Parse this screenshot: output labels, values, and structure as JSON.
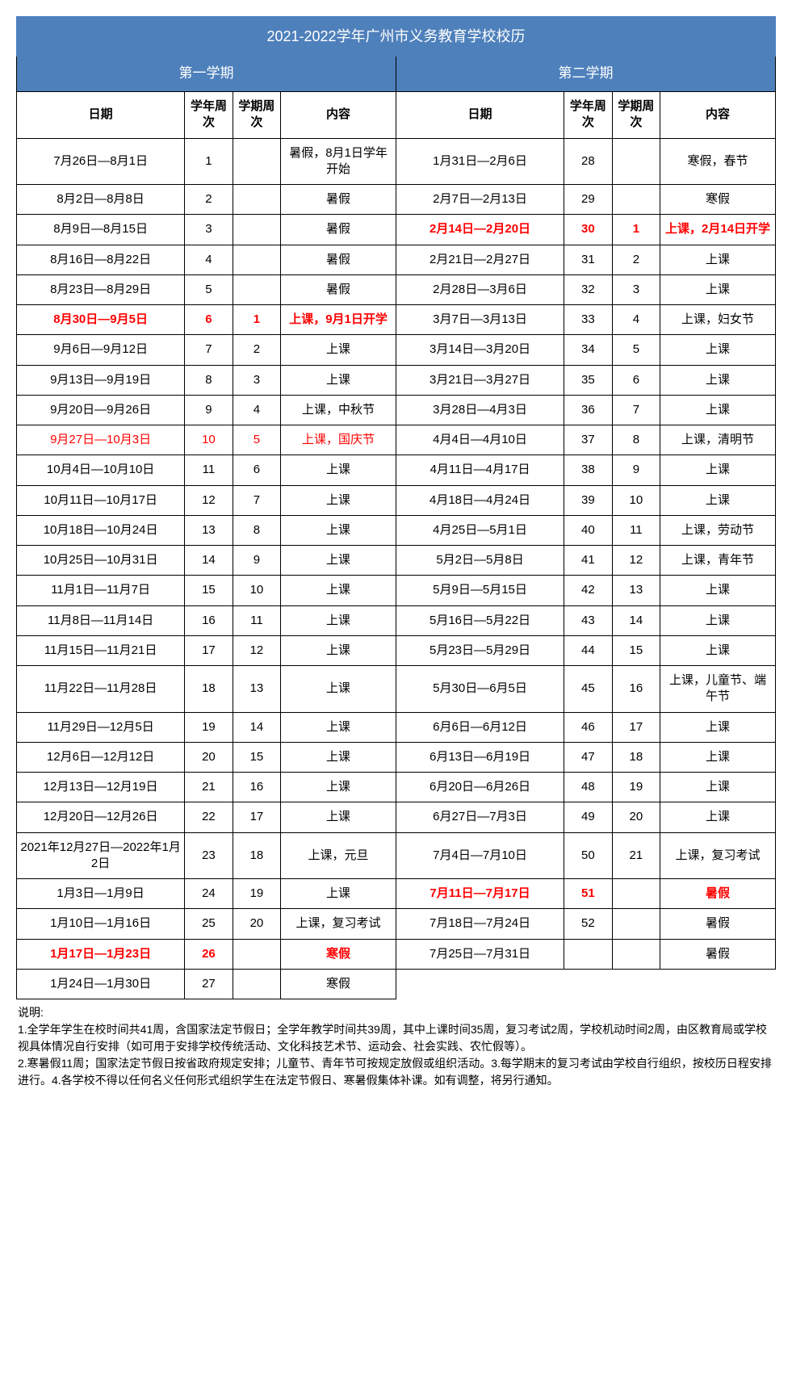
{
  "title": "2021-2022学年广州市义务教育学校校历",
  "semesters": [
    "第一学期",
    "第二学期"
  ],
  "headers": {
    "date": "日期",
    "yearWeek": "学年周次",
    "semWeek": "学期周次",
    "content": "内容"
  },
  "colors": {
    "headerBg": "#4e80bb",
    "headerText": "#ffffff",
    "border": "#000000",
    "highlight": "#ff0000",
    "bg": "#ffffff"
  },
  "fontSizes": {
    "title": 18,
    "semester": 17,
    "header": 15,
    "body": 15,
    "notes": 14
  },
  "rows": [
    {
      "l": {
        "d": "7月26日—8月1日",
        "yw": "1",
        "sw": "",
        "c": "暑假，8月1日学年开始"
      },
      "r": {
        "d": "1月31日—2月6日",
        "yw": "28",
        "sw": "",
        "c": "寒假，春节"
      }
    },
    {
      "l": {
        "d": "8月2日—8月8日",
        "yw": "2",
        "sw": "",
        "c": "暑假"
      },
      "r": {
        "d": "2月7日—2月13日",
        "yw": "29",
        "sw": "",
        "c": "寒假"
      }
    },
    {
      "l": {
        "d": "8月9日—8月15日",
        "yw": "3",
        "sw": "",
        "c": "暑假"
      },
      "r": {
        "d": "2月14日—2月20日",
        "yw": "30",
        "sw": "1",
        "c": "上课，2月14日开学",
        "hl": true,
        "bold": true
      }
    },
    {
      "l": {
        "d": "8月16日—8月22日",
        "yw": "4",
        "sw": "",
        "c": "暑假"
      },
      "r": {
        "d": "2月21日—2月27日",
        "yw": "31",
        "sw": "2",
        "c": "上课"
      }
    },
    {
      "l": {
        "d": "8月23日—8月29日",
        "yw": "5",
        "sw": "",
        "c": "暑假"
      },
      "r": {
        "d": "2月28日—3月6日",
        "yw": "32",
        "sw": "3",
        "c": "上课"
      }
    },
    {
      "l": {
        "d": "8月30日—9月5日",
        "yw": "6",
        "sw": "1",
        "c": "上课，9月1日开学",
        "hl": true,
        "bold": true
      },
      "r": {
        "d": "3月7日—3月13日",
        "yw": "33",
        "sw": "4",
        "c": "上课，妇女节"
      }
    },
    {
      "l": {
        "d": "9月6日—9月12日",
        "yw": "7",
        "sw": "2",
        "c": "上课"
      },
      "r": {
        "d": "3月14日—3月20日",
        "yw": "34",
        "sw": "5",
        "c": "上课"
      }
    },
    {
      "l": {
        "d": "9月13日—9月19日",
        "yw": "8",
        "sw": "3",
        "c": "上课"
      },
      "r": {
        "d": "3月21日—3月27日",
        "yw": "35",
        "sw": "6",
        "c": "上课"
      }
    },
    {
      "l": {
        "d": "9月20日—9月26日",
        "yw": "9",
        "sw": "4",
        "c": "上课，中秋节"
      },
      "r": {
        "d": "3月28日—4月3日",
        "yw": "36",
        "sw": "7",
        "c": "上课"
      }
    },
    {
      "l": {
        "d": "9月27日—10月3日",
        "yw": "10",
        "sw": "5",
        "c": "上课，国庆节",
        "hl": true
      },
      "r": {
        "d": "4月4日—4月10日",
        "yw": "37",
        "sw": "8",
        "c": "上课，清明节"
      }
    },
    {
      "l": {
        "d": "10月4日—10月10日",
        "yw": "11",
        "sw": "6",
        "c": "上课"
      },
      "r": {
        "d": "4月11日—4月17日",
        "yw": "38",
        "sw": "9",
        "c": "上课"
      }
    },
    {
      "l": {
        "d": "10月11日—10月17日",
        "yw": "12",
        "sw": "7",
        "c": "上课"
      },
      "r": {
        "d": "4月18日—4月24日",
        "yw": "39",
        "sw": "10",
        "c": "上课"
      }
    },
    {
      "l": {
        "d": "10月18日—10月24日",
        "yw": "13",
        "sw": "8",
        "c": "上课"
      },
      "r": {
        "d": "4月25日—5月1日",
        "yw": "40",
        "sw": "11",
        "c": "上课，劳动节"
      }
    },
    {
      "l": {
        "d": "10月25日—10月31日",
        "yw": "14",
        "sw": "9",
        "c": "上课"
      },
      "r": {
        "d": "5月2日—5月8日",
        "yw": "41",
        "sw": "12",
        "c": "上课，青年节"
      }
    },
    {
      "l": {
        "d": "11月1日—11月7日",
        "yw": "15",
        "sw": "10",
        "c": "上课"
      },
      "r": {
        "d": "5月9日—5月15日",
        "yw": "42",
        "sw": "13",
        "c": "上课"
      }
    },
    {
      "l": {
        "d": "11月8日—11月14日",
        "yw": "16",
        "sw": "11",
        "c": "上课"
      },
      "r": {
        "d": "5月16日—5月22日",
        "yw": "43",
        "sw": "14",
        "c": "上课"
      }
    },
    {
      "l": {
        "d": "11月15日—11月21日",
        "yw": "17",
        "sw": "12",
        "c": "上课"
      },
      "r": {
        "d": "5月23日—5月29日",
        "yw": "44",
        "sw": "15",
        "c": "上课"
      }
    },
    {
      "l": {
        "d": "11月22日—11月28日",
        "yw": "18",
        "sw": "13",
        "c": "上课"
      },
      "r": {
        "d": "5月30日—6月5日",
        "yw": "45",
        "sw": "16",
        "c": "上课，儿童节、端午节"
      }
    },
    {
      "l": {
        "d": "11月29日—12月5日",
        "yw": "19",
        "sw": "14",
        "c": "上课"
      },
      "r": {
        "d": "6月6日—6月12日",
        "yw": "46",
        "sw": "17",
        "c": "上课"
      }
    },
    {
      "l": {
        "d": "12月6日—12月12日",
        "yw": "20",
        "sw": "15",
        "c": "上课"
      },
      "r": {
        "d": "6月13日—6月19日",
        "yw": "47",
        "sw": "18",
        "c": "上课"
      }
    },
    {
      "l": {
        "d": "12月13日—12月19日",
        "yw": "21",
        "sw": "16",
        "c": "上课"
      },
      "r": {
        "d": "6月20日—6月26日",
        "yw": "48",
        "sw": "19",
        "c": "上课"
      }
    },
    {
      "l": {
        "d": "12月20日—12月26日",
        "yw": "22",
        "sw": "17",
        "c": "上课"
      },
      "r": {
        "d": "6月27日—7月3日",
        "yw": "49",
        "sw": "20",
        "c": "上课"
      }
    },
    {
      "l": {
        "d": "2021年12月27日—2022年1月2日",
        "yw": "23",
        "sw": "18",
        "c": "上课，元旦"
      },
      "r": {
        "d": "7月4日—7月10日",
        "yw": "50",
        "sw": "21",
        "c": "上课，复习考试"
      }
    },
    {
      "l": {
        "d": "1月3日—1月9日",
        "yw": "24",
        "sw": "19",
        "c": "上课"
      },
      "r": {
        "d": "7月11日—7月17日",
        "yw": "51",
        "sw": "",
        "c": "暑假",
        "hl": true,
        "bold": true
      }
    },
    {
      "l": {
        "d": "1月10日—1月16日",
        "yw": "25",
        "sw": "20",
        "c": "上课，复习考试"
      },
      "r": {
        "d": "7月18日—7月24日",
        "yw": "52",
        "sw": "",
        "c": "暑假"
      }
    },
    {
      "l": {
        "d": "1月17日—1月23日",
        "yw": "26",
        "sw": "",
        "c": "寒假",
        "hl": true,
        "bold": true
      },
      "r": {
        "d": "7月25日—7月31日",
        "yw": "",
        "sw": "",
        "c": "暑假"
      }
    },
    {
      "l": {
        "d": "1月24日—1月30日",
        "yw": "27",
        "sw": "",
        "c": "寒假"
      },
      "r": null
    }
  ],
  "notes": {
    "title": "说明:",
    "items": [
      "1.全学年学生在校时间共41周，含国家法定节假日；全学年教学时间共39周，其中上课时间35周，复习考试2周，学校机动时间2周，由区教育局或学校视具体情况自行安排（如可用于安排学校传统活动、文化科技艺术节、运动会、社会实践、农忙假等）。",
      "2.寒暑假11周；国家法定节假日按省政府规定安排；儿童节、青年节可按规定放假或组织活动。3.每学期末的复习考试由学校自行组织，按校历日程安排进行。4.各学校不得以任何名义任何形式组织学生在法定节假日、寒暑假集体补课。如有调整，将另行通知。"
    ]
  }
}
